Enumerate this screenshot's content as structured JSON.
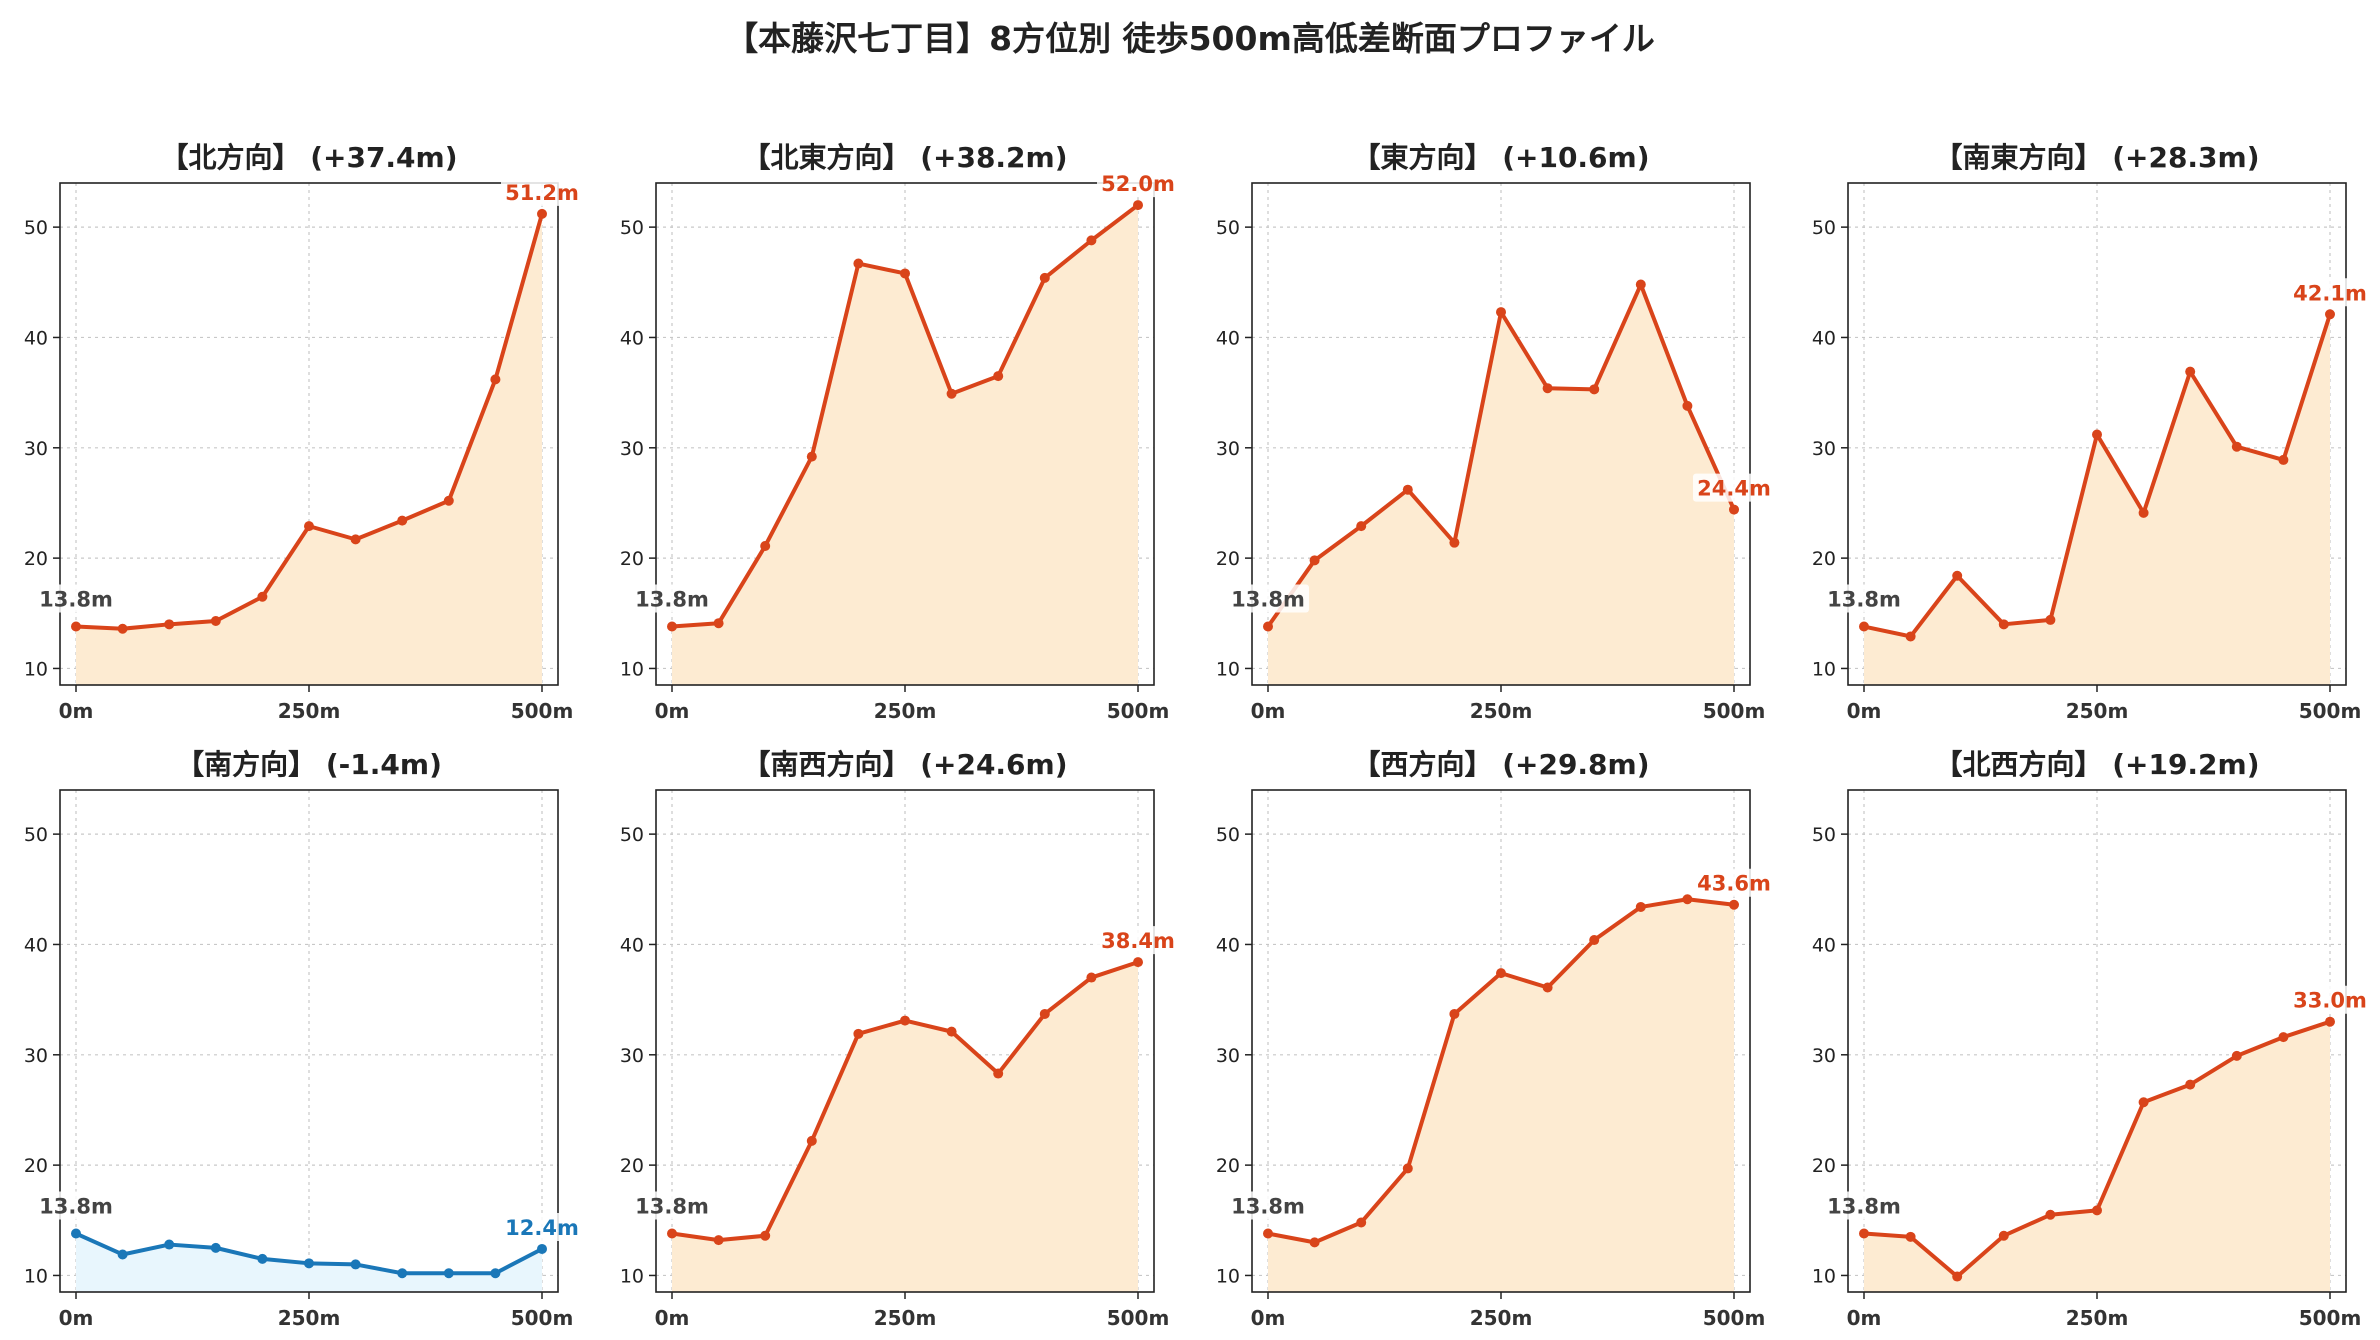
{
  "title": "【本藤沢七丁目】8方位別 徒歩500m高低差断面プロファイル",
  "colors": {
    "up_line": "#d9441a",
    "up_fill": "#fdebd2",
    "down_line": "#1a77b8",
    "down_fill": "#e8f6fd",
    "start_label": "#444444"
  },
  "chart_data": [
    {
      "type": "area",
      "title": "【北方向】 (+37.4m)",
      "trend": "up",
      "x": [
        0,
        50,
        100,
        150,
        200,
        250,
        300,
        350,
        400,
        450,
        500
      ],
      "y": [
        13.8,
        13.6,
        14.0,
        14.3,
        16.5,
        22.9,
        21.7,
        23.4,
        25.2,
        36.2,
        51.2
      ],
      "start_label": "13.8m",
      "end_label": "51.2m",
      "xticks": [
        0,
        250,
        500
      ],
      "xtick_labels": [
        "0m",
        "250m",
        "500m"
      ],
      "yticks": [
        10,
        20,
        30,
        40,
        50
      ],
      "ylim": [
        8.5,
        54
      ],
      "grid": true
    },
    {
      "type": "area",
      "title": "【北東方向】 (+38.2m)",
      "trend": "up",
      "x": [
        0,
        50,
        100,
        150,
        200,
        250,
        300,
        350,
        400,
        450,
        500
      ],
      "y": [
        13.8,
        14.1,
        21.1,
        29.2,
        46.7,
        45.8,
        34.9,
        36.5,
        45.4,
        48.8,
        52.0
      ],
      "start_label": "13.8m",
      "end_label": "52.0m",
      "xticks": [
        0,
        250,
        500
      ],
      "xtick_labels": [
        "0m",
        "250m",
        "500m"
      ],
      "yticks": [
        10,
        20,
        30,
        40,
        50
      ],
      "ylim": [
        8.5,
        54
      ],
      "grid": true
    },
    {
      "type": "area",
      "title": "【東方向】 (+10.6m)",
      "trend": "up",
      "x": [
        0,
        50,
        100,
        150,
        200,
        250,
        300,
        350,
        400,
        450,
        500
      ],
      "y": [
        13.8,
        19.8,
        22.9,
        26.2,
        21.4,
        42.3,
        35.4,
        35.3,
        44.8,
        33.8,
        24.4
      ],
      "start_label": "13.8m",
      "end_label": "24.4m",
      "xticks": [
        0,
        250,
        500
      ],
      "xtick_labels": [
        "0m",
        "250m",
        "500m"
      ],
      "yticks": [
        10,
        20,
        30,
        40,
        50
      ],
      "ylim": [
        8.5,
        54
      ],
      "grid": true
    },
    {
      "type": "area",
      "title": "【南東方向】 (+28.3m)",
      "trend": "up",
      "x": [
        0,
        50,
        100,
        150,
        200,
        250,
        300,
        350,
        400,
        450,
        500
      ],
      "y": [
        13.8,
        12.9,
        18.4,
        14.0,
        14.4,
        31.2,
        24.1,
        36.9,
        30.1,
        28.9,
        42.1
      ],
      "start_label": "13.8m",
      "end_label": "42.1m",
      "xticks": [
        0,
        250,
        500
      ],
      "xtick_labels": [
        "0m",
        "250m",
        "500m"
      ],
      "yticks": [
        10,
        20,
        30,
        40,
        50
      ],
      "ylim": [
        8.5,
        54
      ],
      "grid": true
    },
    {
      "type": "area",
      "title": "【南方向】 (-1.4m)",
      "trend": "down",
      "x": [
        0,
        50,
        100,
        150,
        200,
        250,
        300,
        350,
        400,
        450,
        500
      ],
      "y": [
        13.8,
        11.9,
        12.8,
        12.5,
        11.5,
        11.1,
        11.0,
        10.2,
        10.2,
        10.2,
        12.4
      ],
      "start_label": "13.8m",
      "end_label": "12.4m",
      "xticks": [
        0,
        250,
        500
      ],
      "xtick_labels": [
        "0m",
        "250m",
        "500m"
      ],
      "yticks": [
        10,
        20,
        30,
        40,
        50
      ],
      "ylim": [
        8.5,
        54
      ],
      "grid": true
    },
    {
      "type": "area",
      "title": "【南西方向】 (+24.6m)",
      "trend": "up",
      "x": [
        0,
        50,
        100,
        150,
        200,
        250,
        300,
        350,
        400,
        450,
        500
      ],
      "y": [
        13.8,
        13.2,
        13.6,
        22.2,
        31.9,
        33.1,
        32.1,
        28.3,
        33.7,
        37.0,
        38.4
      ],
      "start_label": "13.8m",
      "end_label": "38.4m",
      "xticks": [
        0,
        250,
        500
      ],
      "xtick_labels": [
        "0m",
        "250m",
        "500m"
      ],
      "yticks": [
        10,
        20,
        30,
        40,
        50
      ],
      "ylim": [
        8.5,
        54
      ],
      "grid": true
    },
    {
      "type": "area",
      "title": "【西方向】 (+29.8m)",
      "trend": "up",
      "x": [
        0,
        50,
        100,
        150,
        200,
        250,
        300,
        350,
        400,
        450,
        500
      ],
      "y": [
        13.8,
        13.0,
        14.8,
        19.7,
        33.7,
        37.4,
        36.1,
        40.4,
        43.4,
        44.1,
        43.6
      ],
      "start_label": "13.8m",
      "end_label": "43.6m",
      "xticks": [
        0,
        250,
        500
      ],
      "xtick_labels": [
        "0m",
        "250m",
        "500m"
      ],
      "yticks": [
        10,
        20,
        30,
        40,
        50
      ],
      "ylim": [
        8.5,
        54
      ],
      "grid": true
    },
    {
      "type": "area",
      "title": "【北西方向】 (+19.2m)",
      "trend": "up",
      "x": [
        0,
        50,
        100,
        150,
        200,
        250,
        300,
        350,
        400,
        450,
        500
      ],
      "y": [
        13.8,
        13.5,
        9.9,
        13.6,
        15.5,
        15.9,
        25.7,
        27.3,
        29.9,
        31.6,
        33.0
      ],
      "start_label": "13.8m",
      "end_label": "33.0m",
      "xticks": [
        0,
        250,
        500
      ],
      "xtick_labels": [
        "0m",
        "250m",
        "500m"
      ],
      "yticks": [
        10,
        20,
        30,
        40,
        50
      ],
      "ylim": [
        8.5,
        54
      ],
      "grid": true
    }
  ]
}
